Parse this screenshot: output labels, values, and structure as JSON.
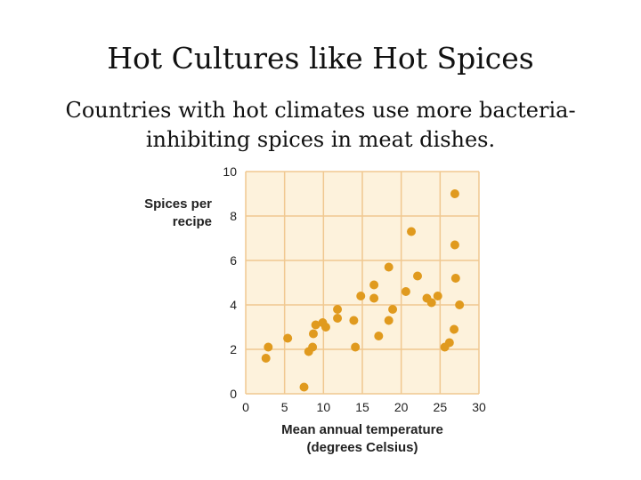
{
  "slide": {
    "title": "Hot Cultures like Hot Spices",
    "subtitle": "Countries with hot climates use more bacteria-inhibiting spices in meat dishes."
  },
  "colors": {
    "plot_bg": "#fdf2dc",
    "grid": "#f0c890",
    "point": "#e09a1e"
  },
  "chart_data": {
    "type": "scatter",
    "title": "",
    "xlabel": "Mean annual temperature (degrees Celsius)",
    "xlabel_lines": [
      "Mean annual temperature",
      "(degrees Celsius)"
    ],
    "ylabel": "Spices per recipe",
    "ylabel_lines": [
      "Spices per",
      "recipe"
    ],
    "xlim": [
      0,
      30
    ],
    "ylim": [
      0,
      10
    ],
    "xticks": [
      0,
      5,
      10,
      15,
      20,
      25,
      30
    ],
    "yticks": [
      0,
      2,
      4,
      6,
      8,
      10
    ],
    "grid": true,
    "legend": "none",
    "points": [
      {
        "x": 2.6,
        "y": 1.6
      },
      {
        "x": 2.9,
        "y": 2.1
      },
      {
        "x": 5.4,
        "y": 2.5
      },
      {
        "x": 7.5,
        "y": 0.3
      },
      {
        "x": 8.1,
        "y": 1.9
      },
      {
        "x": 8.6,
        "y": 2.1
      },
      {
        "x": 8.7,
        "y": 2.7
      },
      {
        "x": 9.0,
        "y": 3.1
      },
      {
        "x": 9.9,
        "y": 3.2
      },
      {
        "x": 10.3,
        "y": 3.0
      },
      {
        "x": 11.8,
        "y": 3.8
      },
      {
        "x": 11.8,
        "y": 3.4
      },
      {
        "x": 13.9,
        "y": 3.3
      },
      {
        "x": 14.1,
        "y": 2.1
      },
      {
        "x": 14.8,
        "y": 4.4
      },
      {
        "x": 16.5,
        "y": 4.9
      },
      {
        "x": 16.5,
        "y": 4.3
      },
      {
        "x": 17.1,
        "y": 2.6
      },
      {
        "x": 18.4,
        "y": 5.7
      },
      {
        "x": 18.4,
        "y": 3.3
      },
      {
        "x": 18.9,
        "y": 3.8
      },
      {
        "x": 20.6,
        "y": 4.6
      },
      {
        "x": 21.3,
        "y": 7.3
      },
      {
        "x": 22.1,
        "y": 5.3
      },
      {
        "x": 23.3,
        "y": 4.3
      },
      {
        "x": 23.9,
        "y": 4.1
      },
      {
        "x": 24.7,
        "y": 4.4
      },
      {
        "x": 25.6,
        "y": 2.1
      },
      {
        "x": 26.2,
        "y": 2.3
      },
      {
        "x": 26.8,
        "y": 2.9
      },
      {
        "x": 26.9,
        "y": 6.7
      },
      {
        "x": 26.9,
        "y": 9.0
      },
      {
        "x": 27.0,
        "y": 5.2
      },
      {
        "x": 27.5,
        "y": 4.0
      }
    ]
  }
}
